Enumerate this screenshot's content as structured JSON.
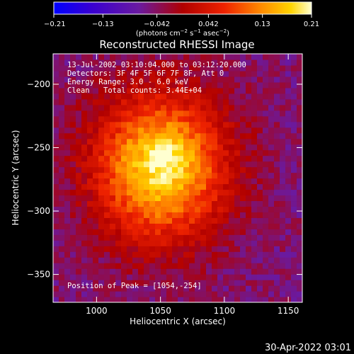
{
  "chart_data": {
    "type": "heatmap",
    "title": "Reconstructed RHESSI Image",
    "xlabel": "Heliocentric X (arcsec)",
    "ylabel": "Heliocentric Y (arcsec)",
    "xlim": [
      966,
      1161
    ],
    "ylim": [
      -372,
      -176
    ],
    "x_ticks": [
      1000,
      1050,
      1100,
      1150
    ],
    "x_tick_labels": [
      "1000",
      "1050",
      "1100",
      "1150"
    ],
    "y_ticks": [
      -200,
      -250,
      -300,
      -350
    ],
    "y_tick_labels": [
      "−200",
      "−250",
      "−300",
      "−350"
    ],
    "colorbar": {
      "range": [
        -0.21,
        0.21
      ],
      "ticks": [
        -0.21,
        -0.13,
        -0.042,
        0.042,
        0.13,
        0.21
      ],
      "tick_labels": [
        "−0.21",
        "−0.13",
        "−0.042",
        "0.042",
        "0.13",
        "0.21"
      ],
      "units_prefix": "(photons cm",
      "units_exp1": "−2",
      "units_mid": " s",
      "units_exp2": "−1",
      "units_mid2": " asec",
      "units_exp3": "−2",
      "units_suffix": ")"
    },
    "peak": {
      "x": 1054,
      "y": -254,
      "value": 0.21
    },
    "source": {
      "x": 1050,
      "y": -265,
      "sigma_x": 36,
      "sigma_y": 40
    },
    "background_level": -0.05,
    "grid": false,
    "annotations": {
      "time_range": "13-Jul-2002 03:10:04.000 to 03:12:20.000",
      "detectors": "Detectors: 3F 4F 5F 6F 7F 8F, Att 0",
      "energy": "Energy Range: 3.0 - 6.0 keV",
      "method": "Clean",
      "counts": "Total counts: 3.44E+04",
      "peak_label": "Position of Peak = [1054,-254]"
    }
  },
  "footer": {
    "timestamp": "30-Apr-2022 03:01"
  }
}
